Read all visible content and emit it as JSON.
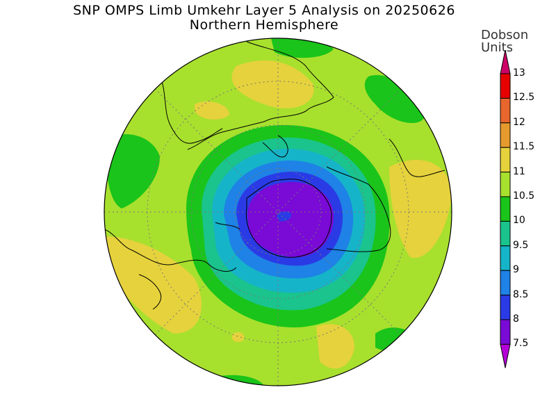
{
  "title": "SNP OMPS Limb Umkehr Layer 5 Analysis on 20250626",
  "subtitle": "Northern Hemisphere",
  "units": {
    "line1": "Dobson",
    "line2": "Units"
  },
  "colorbar": {
    "levels": [
      "13",
      "12.5",
      "12",
      "11.5",
      "11",
      "10.5",
      "10",
      "9.5",
      "9",
      "8.5",
      "8",
      "7.5"
    ],
    "colors": [
      "#cc0066",
      "#e60000",
      "#e8662d",
      "#e69a2e",
      "#e6d23c",
      "#a8e02e",
      "#1ac41a",
      "#1ac48c",
      "#16b4c8",
      "#1e82e6",
      "#2a3be6",
      "#7a0ad6",
      "#b400d8"
    ]
  }
}
